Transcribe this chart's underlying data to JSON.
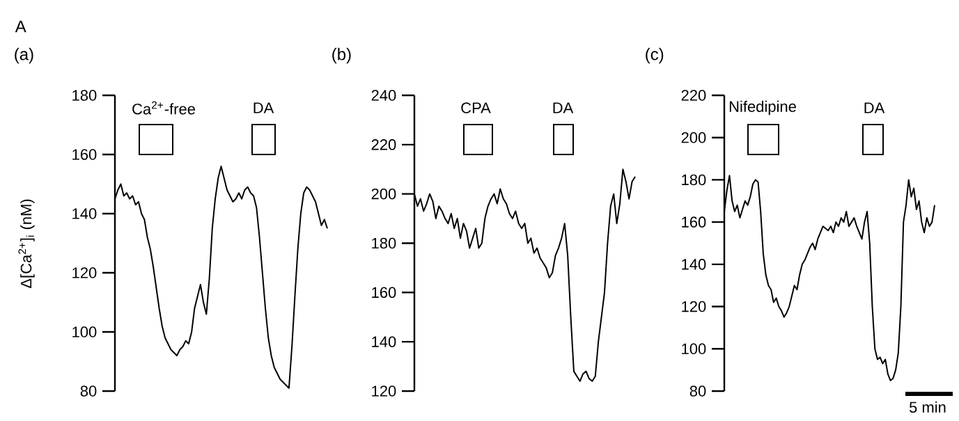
{
  "chart_data": [
    {
      "type": "line",
      "title": "(a)",
      "ylabel": "Δ[Ca$^{2+}$]$_{i}$ (nM)",
      "annotations": [
        "A",
        "Ca$^{2+}$-free",
        "DA"
      ],
      "tick_labels": "y",
      "color": "#000000",
      "ylim": [
        80,
        180
      ],
      "yticks": [
        80,
        100,
        120,
        140,
        160,
        180
      ],
      "categories": [
        null,
        null,
        null,
        null,
        null,
        null,
        null,
        null,
        null,
        null,
        null,
        null,
        null,
        null,
        null,
        null,
        null,
        null,
        null,
        null,
        null,
        null,
        null,
        null,
        null,
        null,
        null,
        null,
        null,
        null,
        null,
        null,
        null,
        null,
        null,
        null,
        null,
        null,
        null,
        null,
        null,
        null,
        null,
        null,
        null,
        null,
        null,
        null,
        null,
        null,
        null,
        null,
        null,
        null,
        null,
        null,
        null,
        null,
        null,
        null,
        null,
        null,
        null,
        null,
        null,
        null,
        null,
        null,
        null,
        null,
        null,
        null,
        null
      ],
      "values": [
        145,
        148,
        150,
        146,
        147,
        145,
        146,
        143,
        144,
        140,
        138,
        132,
        128,
        122,
        115,
        108,
        102,
        98,
        96,
        94,
        93,
        92,
        94,
        95,
        97,
        96,
        100,
        108,
        112,
        116,
        110,
        106,
        118,
        135,
        145,
        152,
        156,
        152,
        148,
        146,
        144,
        145,
        147,
        145,
        148,
        149,
        147,
        146,
        142,
        132,
        120,
        108,
        98,
        92,
        88,
        86,
        84,
        83,
        82,
        81,
        95,
        112,
        128,
        140,
        147,
        149,
        148,
        146,
        144,
        140,
        136,
        138,
        135
      ]
    },
    {
      "type": "line",
      "title": "(b)",
      "annotations": [
        "CPA",
        "DA"
      ],
      "tick_labels": "y",
      "color": "#000000",
      "ylim": [
        120,
        240
      ],
      "yticks": [
        120,
        140,
        160,
        180,
        200,
        220,
        240
      ],
      "categories": [
        null,
        null,
        null,
        null,
        null,
        null,
        null,
        null,
        null,
        null,
        null,
        null,
        null,
        null,
        null,
        null,
        null,
        null,
        null,
        null,
        null,
        null,
        null,
        null,
        null,
        null,
        null,
        null,
        null,
        null,
        null,
        null,
        null,
        null,
        null,
        null,
        null,
        null,
        null,
        null,
        null,
        null,
        null,
        null,
        null,
        null,
        null,
        null,
        null,
        null,
        null,
        null,
        null,
        null,
        null,
        null,
        null,
        null,
        null,
        null,
        null,
        null,
        null,
        null,
        null,
        null,
        null,
        null,
        null,
        null,
        null,
        null,
        null
      ],
      "values": [
        200,
        195,
        198,
        193,
        196,
        200,
        197,
        190,
        195,
        193,
        190,
        188,
        192,
        186,
        190,
        182,
        188,
        185,
        178,
        182,
        186,
        178,
        180,
        190,
        195,
        198,
        200,
        196,
        202,
        198,
        196,
        192,
        190,
        193,
        188,
        186,
        188,
        180,
        182,
        176,
        178,
        174,
        172,
        170,
        166,
        168,
        175,
        178,
        182,
        188,
        175,
        150,
        128,
        126,
        124,
        127,
        128,
        125,
        124,
        126,
        140,
        150,
        160,
        180,
        195,
        200,
        188,
        196,
        210,
        205,
        198,
        205,
        207
      ]
    },
    {
      "type": "line",
      "title": "(c)",
      "annotations": [
        "Nifedipine",
        "DA",
        "5 min"
      ],
      "tick_labels": "y",
      "color": "#000000",
      "ylim": [
        80,
        220
      ],
      "yticks": [
        80,
        100,
        120,
        140,
        160,
        180,
        200,
        220
      ],
      "categories": [
        null,
        null,
        null,
        null,
        null,
        null,
        null,
        null,
        null,
        null,
        null,
        null,
        null,
        null,
        null,
        null,
        null,
        null,
        null,
        null,
        null,
        null,
        null,
        null,
        null,
        null,
        null,
        null,
        null,
        null,
        null,
        null,
        null,
        null,
        null,
        null,
        null,
        null,
        null,
        null,
        null,
        null,
        null,
        null,
        null,
        null,
        null,
        null,
        null,
        null,
        null,
        null,
        null,
        null,
        null,
        null,
        null,
        null,
        null,
        null,
        null,
        null,
        null,
        null,
        null,
        null,
        null,
        null,
        null,
        null,
        null,
        null,
        null,
        null,
        null,
        null,
        null,
        null,
        null,
        null,
        null,
        null
      ],
      "values": [
        165,
        175,
        182,
        170,
        165,
        168,
        162,
        166,
        170,
        168,
        172,
        178,
        180,
        179,
        165,
        145,
        135,
        130,
        128,
        122,
        124,
        120,
        118,
        115,
        117,
        120,
        125,
        130,
        128,
        135,
        140,
        142,
        145,
        148,
        150,
        147,
        152,
        155,
        158,
        157,
        156,
        158,
        155,
        160,
        158,
        162,
        160,
        165,
        158,
        160,
        162,
        158,
        155,
        152,
        160,
        165,
        150,
        120,
        100,
        95,
        96,
        93,
        95,
        88,
        85,
        86,
        90,
        98,
        120,
        160,
        168,
        180,
        172,
        176,
        166,
        170,
        160,
        155,
        162,
        158,
        160,
        168
      ]
    }
  ]
}
